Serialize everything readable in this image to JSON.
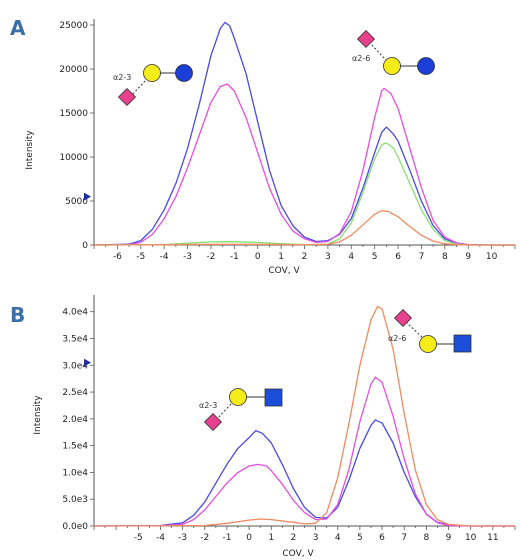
{
  "colors": {
    "blue": "#4a4ae8",
    "magenta": "#e64fe0",
    "green": "#88e070",
    "orange": "#f08a60",
    "axis": "#555555",
    "panel_label": "#3a6fa8",
    "glycan_yellow": "#f5ec1a",
    "glycan_blue_circle": "#1a3ed6",
    "glycan_blue_square": "#1a4ed8",
    "glycan_pink": "#e8408c",
    "arrow": "#2030a0"
  },
  "chart_data": [
    {
      "panel": "A",
      "type": "line",
      "xlabel": "COV, V",
      "ylabel": "Intensity",
      "xlim": [
        -7,
        11
      ],
      "ylim": [
        0,
        25000
      ],
      "x_ticks": [
        "-6",
        "-5",
        "-4",
        "-3",
        "-2",
        "-1",
        "0",
        "1",
        "2",
        "3",
        "4",
        "5",
        "6",
        "7",
        "8",
        "9",
        "10"
      ],
      "y_ticks": [
        "0",
        "5000",
        "10000",
        "15000",
        "20000",
        "25000"
      ],
      "marker_y": 5500,
      "series": [
        {
          "color": "blue",
          "points": [
            [
              -7,
              0
            ],
            [
              -5.5,
              100
            ],
            [
              -5,
              500
            ],
            [
              -4.5,
              1800
            ],
            [
              -4,
              4000
            ],
            [
              -3.5,
              7000
            ],
            [
              -3,
              11000
            ],
            [
              -2.5,
              16000
            ],
            [
              -2,
              21500
            ],
            [
              -1.6,
              24600
            ],
            [
              -1.4,
              25300
            ],
            [
              -1.2,
              24900
            ],
            [
              -1,
              23500
            ],
            [
              -0.5,
              19500
            ],
            [
              0,
              14000
            ],
            [
              0.5,
              8500
            ],
            [
              1,
              4500
            ],
            [
              1.5,
              2200
            ],
            [
              2,
              900
            ],
            [
              2.5,
              400
            ],
            [
              3,
              500
            ],
            [
              3.5,
              1200
            ],
            [
              4,
              3000
            ],
            [
              4.5,
              6500
            ],
            [
              5,
              10500
            ],
            [
              5.3,
              12800
            ],
            [
              5.5,
              13400
            ],
            [
              5.8,
              12600
            ],
            [
              6,
              11800
            ],
            [
              6.5,
              8500
            ],
            [
              7,
              5000
            ],
            [
              7.5,
              2200
            ],
            [
              8,
              700
            ],
            [
              8.5,
              200
            ],
            [
              9,
              50
            ],
            [
              10,
              0
            ],
            [
              11,
              0
            ]
          ]
        },
        {
          "color": "magenta",
          "points": [
            [
              -7,
              0
            ],
            [
              -5.5,
              50
            ],
            [
              -5,
              300
            ],
            [
              -4.5,
              1200
            ],
            [
              -4,
              3000
            ],
            [
              -3.5,
              5500
            ],
            [
              -3,
              8800
            ],
            [
              -2.5,
              12500
            ],
            [
              -2,
              16200
            ],
            [
              -1.6,
              18000
            ],
            [
              -1.3,
              18300
            ],
            [
              -1,
              17500
            ],
            [
              -0.5,
              14500
            ],
            [
              0,
              10500
            ],
            [
              0.5,
              6500
            ],
            [
              1,
              3500
            ],
            [
              1.5,
              1600
            ],
            [
              2,
              700
            ],
            [
              2.5,
              300
            ],
            [
              3,
              400
            ],
            [
              3.5,
              1300
            ],
            [
              4,
              3800
            ],
            [
              4.5,
              8500
            ],
            [
              5,
              14500
            ],
            [
              5.3,
              17500
            ],
            [
              5.4,
              17800
            ],
            [
              5.7,
              17200
            ],
            [
              6,
              15500
            ],
            [
              6.5,
              11000
            ],
            [
              7,
              6500
            ],
            [
              7.5,
              2800
            ],
            [
              8,
              900
            ],
            [
              8.5,
              250
            ],
            [
              9,
              50
            ],
            [
              10,
              0
            ],
            [
              11,
              0
            ]
          ]
        },
        {
          "color": "green",
          "points": [
            [
              -7,
              0
            ],
            [
              -4,
              50
            ],
            [
              -3,
              200
            ],
            [
              -2,
              350
            ],
            [
              -1.2,
              380
            ],
            [
              0,
              300
            ],
            [
              1,
              150
            ],
            [
              2,
              50
            ],
            [
              3,
              100
            ],
            [
              3.5,
              700
            ],
            [
              4,
              2500
            ],
            [
              4.5,
              6000
            ],
            [
              5,
              9800
            ],
            [
              5.3,
              11400
            ],
            [
              5.5,
              11600
            ],
            [
              5.8,
              11000
            ],
            [
              6,
              10000
            ],
            [
              6.5,
              7000
            ],
            [
              7,
              4000
            ],
            [
              7.5,
              1800
            ],
            [
              8,
              500
            ],
            [
              8.5,
              100
            ],
            [
              9,
              0
            ],
            [
              11,
              0
            ]
          ]
        },
        {
          "color": "orange",
          "points": [
            [
              -7,
              0
            ],
            [
              -4,
              30
            ],
            [
              -2,
              80
            ],
            [
              0,
              80
            ],
            [
              2,
              40
            ],
            [
              3,
              80
            ],
            [
              3.5,
              350
            ],
            [
              4,
              1100
            ],
            [
              4.5,
              2300
            ],
            [
              5,
              3500
            ],
            [
              5.3,
              3900
            ],
            [
              5.6,
              3800
            ],
            [
              6,
              3200
            ],
            [
              6.5,
              2100
            ],
            [
              7,
              1100
            ],
            [
              7.5,
              450
            ],
            [
              8,
              150
            ],
            [
              8.5,
              50
            ],
            [
              9,
              0
            ],
            [
              11,
              0
            ]
          ]
        }
      ],
      "annotations": [
        {
          "label": "α2-3",
          "kind": "circle-end"
        },
        {
          "label": "α2-6",
          "kind": "circle-end"
        }
      ]
    },
    {
      "panel": "B",
      "type": "line",
      "xlabel": "COV, V",
      "ylabel": "Intensity",
      "xlim": [
        -7,
        12
      ],
      "ylim": [
        0,
        42000
      ],
      "x_ticks": [
        "-5",
        "-4",
        "-3",
        "-2",
        "-1",
        "0",
        "1",
        "2",
        "3",
        "4",
        "5",
        "6",
        "7",
        "8",
        "9",
        "10",
        "11"
      ],
      "y_ticks": [
        "0.0e0",
        "5.0e3",
        "1.0e4",
        "1.5e4",
        "2.0e4",
        "2.5e4",
        "3.0e4",
        "3.5e4",
        "4.0e4"
      ],
      "marker_y": 30500,
      "series": [
        {
          "color": "blue",
          "points": [
            [
              -7,
              0
            ],
            [
              -4,
              100
            ],
            [
              -3,
              600
            ],
            [
              -2.5,
              2000
            ],
            [
              -2,
              4500
            ],
            [
              -1.5,
              8000
            ],
            [
              -1,
              11500
            ],
            [
              -0.5,
              14500
            ],
            [
              0,
              16500
            ],
            [
              0.3,
              17800
            ],
            [
              0.6,
              17300
            ],
            [
              1,
              15500
            ],
            [
              1.5,
              11500
            ],
            [
              2,
              7000
            ],
            [
              2.5,
              3500
            ],
            [
              3,
              1600
            ],
            [
              3.5,
              1500
            ],
            [
              4,
              3500
            ],
            [
              4.5,
              8500
            ],
            [
              5,
              14500
            ],
            [
              5.5,
              18800
            ],
            [
              5.7,
              19800
            ],
            [
              6,
              19200
            ],
            [
              6.5,
              15500
            ],
            [
              7,
              10000
            ],
            [
              7.5,
              5500
            ],
            [
              8,
              2200
            ],
            [
              8.5,
              700
            ],
            [
              9,
              200
            ],
            [
              10,
              0
            ],
            [
              12,
              0
            ]
          ]
        },
        {
          "color": "magenta",
          "points": [
            [
              -7,
              0
            ],
            [
              -4,
              50
            ],
            [
              -3,
              300
            ],
            [
              -2.5,
              1200
            ],
            [
              -2,
              3000
            ],
            [
              -1.5,
              5500
            ],
            [
              -1,
              8000
            ],
            [
              -0.5,
              10000
            ],
            [
              0,
              11200
            ],
            [
              0.4,
              11500
            ],
            [
              0.8,
              11200
            ],
            [
              1,
              10300
            ],
            [
              1.5,
              7800
            ],
            [
              2,
              4800
            ],
            [
              2.5,
              2500
            ],
            [
              3,
              1200
            ],
            [
              3.5,
              1300
            ],
            [
              4,
              4000
            ],
            [
              4.5,
              10500
            ],
            [
              5,
              19500
            ],
            [
              5.5,
              26500
            ],
            [
              5.7,
              27800
            ],
            [
              6,
              26800
            ],
            [
              6.5,
              20500
            ],
            [
              7,
              12500
            ],
            [
              7.5,
              6000
            ],
            [
              8,
              2200
            ],
            [
              8.5,
              600
            ],
            [
              9,
              100
            ],
            [
              10,
              0
            ],
            [
              12,
              0
            ]
          ]
        },
        {
          "color": "orange",
          "points": [
            [
              -7,
              0
            ],
            [
              -2,
              100
            ],
            [
              -1,
              500
            ],
            [
              0,
              1100
            ],
            [
              0.5,
              1300
            ],
            [
              1,
              1200
            ],
            [
              2,
              700
            ],
            [
              2.5,
              400
            ],
            [
              3,
              500
            ],
            [
              3.5,
              2500
            ],
            [
              4,
              9000
            ],
            [
              4.5,
              19000
            ],
            [
              5,
              30000
            ],
            [
              5.5,
              38500
            ],
            [
              5.8,
              41000
            ],
            [
              6,
              40500
            ],
            [
              6.5,
              33000
            ],
            [
              7,
              21000
            ],
            [
              7.5,
              10500
            ],
            [
              8,
              4000
            ],
            [
              8.5,
              1200
            ],
            [
              9,
              300
            ],
            [
              10,
              0
            ],
            [
              12,
              0
            ]
          ]
        }
      ],
      "annotations": [
        {
          "label": "α2-3",
          "kind": "square-end"
        },
        {
          "label": "α2-6",
          "kind": "square-end"
        }
      ]
    }
  ]
}
